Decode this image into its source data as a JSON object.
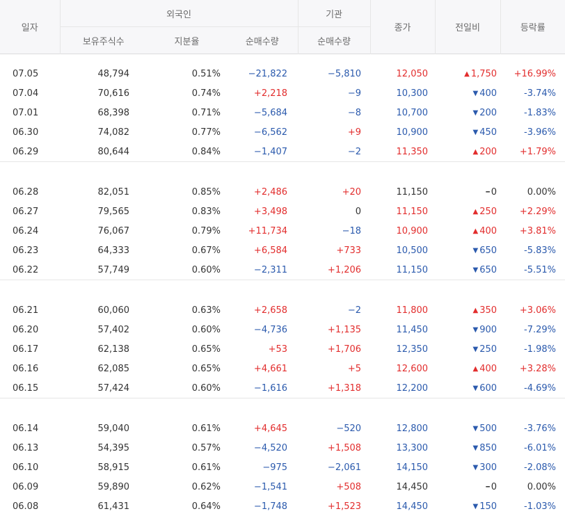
{
  "header": {
    "date": "일자",
    "foreign": "외국인",
    "institution": "기관",
    "close": "종가",
    "change": "전일비",
    "rate": "등락률",
    "holdings": "보유주식수",
    "share": "지분율",
    "foreign_net": "순매수량",
    "inst_net": "순매수량"
  },
  "groups": [
    [
      {
        "date": "07.05",
        "holdings": "48,794",
        "share": "0.51%",
        "foreign_net": "−21,822",
        "inst_net": "−5,810",
        "close": "12,050",
        "change": "1,750",
        "dir": "up",
        "rate": "+16.99%"
      },
      {
        "date": "07.04",
        "holdings": "70,616",
        "share": "0.74%",
        "foreign_net": "+2,218",
        "inst_net": "−9",
        "close": "10,300",
        "change": "400",
        "dir": "down",
        "rate": "-3.74%"
      },
      {
        "date": "07.01",
        "holdings": "68,398",
        "share": "0.71%",
        "foreign_net": "−5,684",
        "inst_net": "−8",
        "close": "10,700",
        "change": "200",
        "dir": "down",
        "rate": "-1.83%"
      },
      {
        "date": "06.30",
        "holdings": "74,082",
        "share": "0.77%",
        "foreign_net": "−6,562",
        "inst_net": "+9",
        "close": "10,900",
        "change": "450",
        "dir": "down",
        "rate": "-3.96%"
      },
      {
        "date": "06.29",
        "holdings": "80,644",
        "share": "0.84%",
        "foreign_net": "−1,407",
        "inst_net": "−2",
        "close": "11,350",
        "change": "200",
        "dir": "up",
        "rate": "+1.79%"
      }
    ],
    [
      {
        "date": "06.28",
        "holdings": "82,051",
        "share": "0.85%",
        "foreign_net": "+2,486",
        "inst_net": "+20",
        "close": "11,150",
        "change": "0",
        "dir": "flat",
        "rate": "0.00%"
      },
      {
        "date": "06.27",
        "holdings": "79,565",
        "share": "0.83%",
        "foreign_net": "+3,498",
        "inst_net": "0",
        "close": "11,150",
        "change": "250",
        "dir": "up",
        "rate": "+2.29%"
      },
      {
        "date": "06.24",
        "holdings": "76,067",
        "share": "0.79%",
        "foreign_net": "+11,734",
        "inst_net": "−18",
        "close": "10,900",
        "change": "400",
        "dir": "up",
        "rate": "+3.81%"
      },
      {
        "date": "06.23",
        "holdings": "64,333",
        "share": "0.67%",
        "foreign_net": "+6,584",
        "inst_net": "+733",
        "close": "10,500",
        "change": "650",
        "dir": "down",
        "rate": "-5.83%"
      },
      {
        "date": "06.22",
        "holdings": "57,749",
        "share": "0.60%",
        "foreign_net": "−2,311",
        "inst_net": "+1,206",
        "close": "11,150",
        "change": "650",
        "dir": "down",
        "rate": "-5.51%"
      }
    ],
    [
      {
        "date": "06.21",
        "holdings": "60,060",
        "share": "0.63%",
        "foreign_net": "+2,658",
        "inst_net": "−2",
        "close": "11,800",
        "change": "350",
        "dir": "up",
        "rate": "+3.06%"
      },
      {
        "date": "06.20",
        "holdings": "57,402",
        "share": "0.60%",
        "foreign_net": "−4,736",
        "inst_net": "+1,135",
        "close": "11,450",
        "change": "900",
        "dir": "down",
        "rate": "-7.29%"
      },
      {
        "date": "06.17",
        "holdings": "62,138",
        "share": "0.65%",
        "foreign_net": "+53",
        "inst_net": "+1,706",
        "close": "12,350",
        "change": "250",
        "dir": "down",
        "rate": "-1.98%"
      },
      {
        "date": "06.16",
        "holdings": "62,085",
        "share": "0.65%",
        "foreign_net": "+4,661",
        "inst_net": "+5",
        "close": "12,600",
        "change": "400",
        "dir": "up",
        "rate": "+3.28%"
      },
      {
        "date": "06.15",
        "holdings": "57,424",
        "share": "0.60%",
        "foreign_net": "−1,616",
        "inst_net": "+1,318",
        "close": "12,200",
        "change": "600",
        "dir": "down",
        "rate": "-4.69%"
      }
    ],
    [
      {
        "date": "06.14",
        "holdings": "59,040",
        "share": "0.61%",
        "foreign_net": "+4,645",
        "inst_net": "−520",
        "close": "12,800",
        "change": "500",
        "dir": "down",
        "rate": "-3.76%"
      },
      {
        "date": "06.13",
        "holdings": "54,395",
        "share": "0.57%",
        "foreign_net": "−4,520",
        "inst_net": "+1,508",
        "close": "13,300",
        "change": "850",
        "dir": "down",
        "rate": "-6.01%"
      },
      {
        "date": "06.10",
        "holdings": "58,915",
        "share": "0.61%",
        "foreign_net": "−975",
        "inst_net": "−2,061",
        "close": "14,150",
        "change": "300",
        "dir": "down",
        "rate": "-2.08%"
      },
      {
        "date": "06.09",
        "holdings": "59,890",
        "share": "0.62%",
        "foreign_net": "−1,541",
        "inst_net": "+508",
        "close": "14,450",
        "change": "0",
        "dir": "flat",
        "rate": "0.00%"
      },
      {
        "date": "06.08",
        "holdings": "61,431",
        "share": "0.64%",
        "foreign_net": "−1,748",
        "inst_net": "+1,523",
        "close": "14,450",
        "change": "150",
        "dir": "down",
        "rate": "-1.03%"
      }
    ]
  ],
  "colors": {
    "up": "#e22d2d",
    "down": "#2b5aad",
    "neutral": "#333333"
  }
}
